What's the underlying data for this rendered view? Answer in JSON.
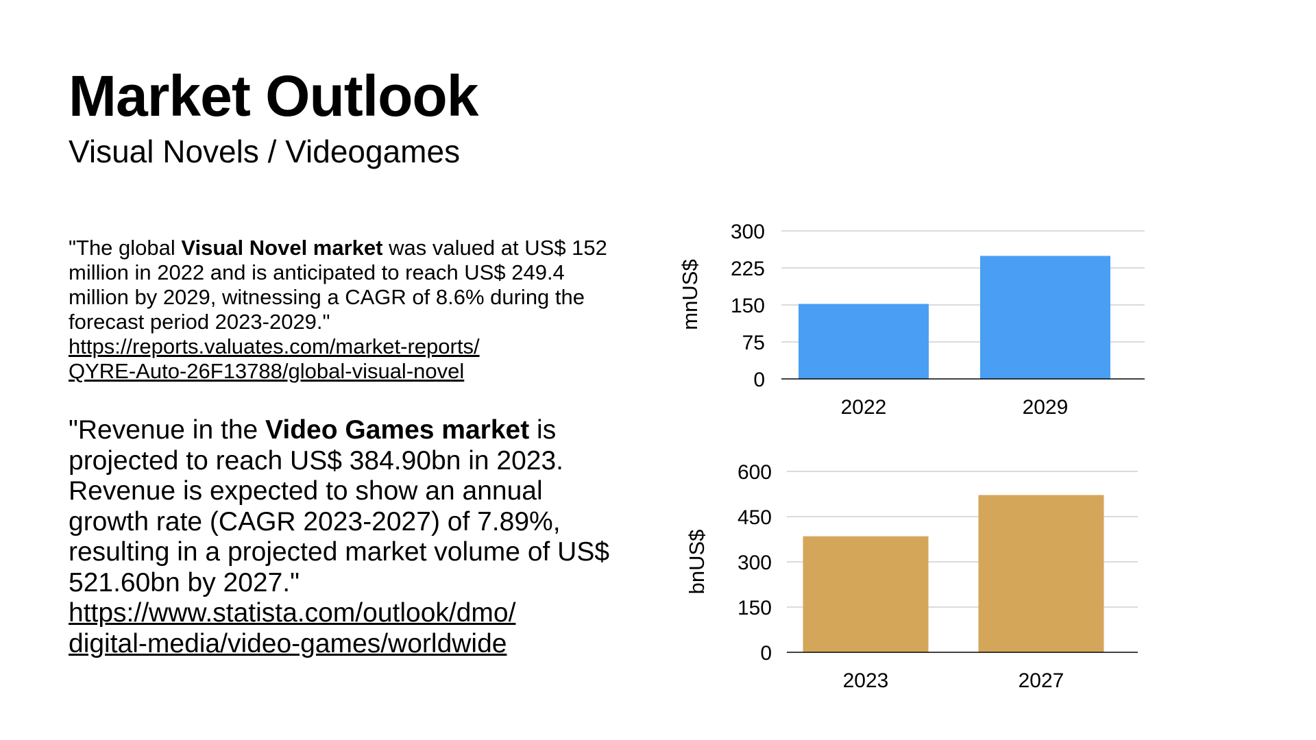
{
  "slide": {
    "title": "Market Outlook",
    "subtitle": "Visual Novels / Videogames"
  },
  "quote1": {
    "pre": "\"The global ",
    "bold": "Visual Novel market",
    "post": " was valued at US$ 152 million in 2022 and is anticipated to reach US$ 249.4 million by 2029, witnessing a CAGR of 8.6% during the forecast period 2023-2029.\"",
    "link_line1": "https://reports.valuates.com/market-reports/",
    "link_line2": "QYRE-Auto-26F13788/global-visual-novel"
  },
  "quote2": {
    "pre": "\"Revenue in the ",
    "bold": "Video Games market",
    "post": " is projected to reach US$ 384.90bn in 2023. Revenue is expected to show an annual growth rate (CAGR 2023-2027) of 7.89%, resulting in a projected market volume of US$ 521.60bn by 2027.\"",
    "link_line1": "https://www.statista.com/outlook/dmo/",
    "link_line2": "digital-media/video-games/worldwide"
  },
  "chart_data": [
    {
      "type": "bar",
      "categories": [
        "2022",
        "2029"
      ],
      "values": [
        152,
        249.4
      ],
      "title": "",
      "xlabel": "",
      "ylabel": "mnUS$",
      "ylim": [
        0,
        300
      ],
      "yticks": [
        "0",
        "75",
        "150",
        "225",
        "300"
      ],
      "grid": true,
      "legend": "none",
      "color": "#4a9ff5"
    },
    {
      "type": "bar",
      "categories": [
        "2023",
        "2027"
      ],
      "values": [
        384.9,
        521.6
      ],
      "title": "",
      "xlabel": "",
      "ylabel": "bnUS$",
      "ylim": [
        0,
        600
      ],
      "yticks": [
        "0",
        "150",
        "300",
        "450",
        "600"
      ],
      "grid": true,
      "legend": "none",
      "color": "#d4a65a"
    }
  ]
}
